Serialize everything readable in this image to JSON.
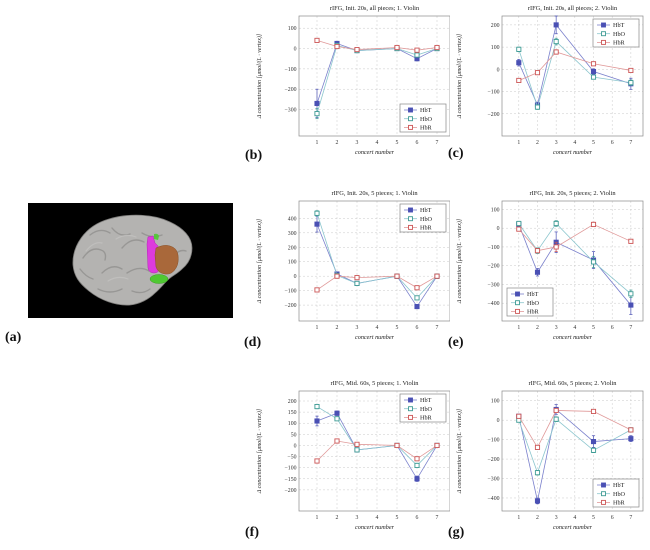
{
  "figure": {
    "panel_labels": {
      "a": "(a)",
      "b": "(b)",
      "c": "(c)",
      "d": "(d)",
      "e": "(e)",
      "f": "(f)",
      "g": "(g)"
    },
    "brain": {
      "background_color": "#000000",
      "brain_color": "#b4b3b1",
      "sulci_color": "#8f8e8c",
      "regions": [
        {
          "name": "magenta-region",
          "color": "#dd3bdd"
        },
        {
          "name": "orange-region",
          "color": "#a9683a"
        },
        {
          "name": "green-region",
          "color": "#4fc832"
        }
      ]
    }
  },
  "chart_data": [
    {
      "id": "b",
      "type": "line",
      "title": "rIFG, Init. 20s, all pieces; 1. Violin",
      "xlabel": "concert number",
      "ylabel": "Δ concentration [μmol/(L · vertex)]",
      "xticks": [
        1,
        2,
        3,
        4,
        5,
        6,
        7
      ],
      "yticks": [
        100,
        0,
        -100,
        -200,
        -300
      ],
      "ylim": [
        -430,
        160
      ],
      "grid": true,
      "legend_pos": "bottom-right",
      "series": [
        {
          "name": "HbT",
          "color": "#4a50b4",
          "line_color": "#7a80cc",
          "marker": "filled-square",
          "x": [
            1,
            2,
            3,
            5,
            6,
            7
          ],
          "y": [
            -270,
            25,
            -10,
            0,
            -50,
            0
          ],
          "err": [
            70,
            8,
            6,
            4,
            10,
            4
          ]
        },
        {
          "name": "HbO",
          "color": "#3d9b94",
          "line_color": "#8cc6ce",
          "marker": "open-square",
          "x": [
            1,
            2,
            3,
            5,
            6,
            7
          ],
          "y": [
            -320,
            15,
            -10,
            0,
            -32,
            0
          ],
          "err": [
            25,
            6,
            5,
            4,
            8,
            4
          ]
        },
        {
          "name": "HbR",
          "color": "#cc5555",
          "line_color": "#e09999",
          "marker": "open-square",
          "x": [
            1,
            2,
            3,
            5,
            6,
            7
          ],
          "y": [
            40,
            10,
            -5,
            5,
            -8,
            5
          ],
          "err": [
            6,
            4,
            4,
            3,
            5,
            3
          ]
        }
      ]
    },
    {
      "id": "c",
      "type": "line",
      "title": "rIFG, Init. 20s, all pieces; 2. Violin",
      "xlabel": "concert number",
      "ylabel": "Δ concentration [μmol/(L · vertex)]",
      "xticks": [
        1,
        2,
        3,
        4,
        5,
        6,
        7
      ],
      "yticks": [
        200,
        100,
        0,
        -100,
        -200
      ],
      "ylim": [
        -300,
        240
      ],
      "grid": true,
      "legend_pos": "top-right",
      "series": [
        {
          "name": "HbT",
          "color": "#4a50b4",
          "line_color": "#7a80cc",
          "marker": "filled-square",
          "x": [
            1,
            2,
            3,
            5,
            7
          ],
          "y": [
            30,
            -160,
            200,
            -10,
            -65
          ],
          "err": [
            15,
            12,
            40,
            12,
            25
          ]
        },
        {
          "name": "HbO",
          "color": "#3d9b94",
          "line_color": "#8cc6ce",
          "marker": "open-square",
          "x": [
            1,
            2,
            3,
            5,
            7
          ],
          "y": [
            90,
            -170,
            125,
            -35,
            -60
          ],
          "err": [
            10,
            10,
            15,
            8,
            12
          ]
        },
        {
          "name": "HbR",
          "color": "#cc5555",
          "line_color": "#e09999",
          "marker": "open-square",
          "x": [
            1,
            2,
            3,
            5,
            7
          ],
          "y": [
            -50,
            -15,
            78,
            25,
            -5
          ],
          "err": [
            8,
            6,
            10,
            8,
            6
          ]
        }
      ]
    },
    {
      "id": "d",
      "type": "line",
      "title": "rIFG, Init. 20s, 5 pieces; 1. Violin",
      "xlabel": "concert number",
      "ylabel": "Δ concentration [μmol/(L · vertex)]",
      "xticks": [
        1,
        2,
        3,
        4,
        5,
        6,
        7
      ],
      "yticks": [
        400,
        300,
        200,
        100,
        0,
        -100,
        -200
      ],
      "ylim": [
        -310,
        520
      ],
      "grid": true,
      "legend_pos": "top-right",
      "series": [
        {
          "name": "HbT",
          "color": "#4a50b4",
          "line_color": "#7a80cc",
          "marker": "filled-square",
          "x": [
            1,
            2,
            3,
            5,
            6,
            7
          ],
          "y": [
            360,
            15,
            -50,
            0,
            -210,
            0
          ],
          "err": [
            55,
            12,
            10,
            5,
            15,
            5
          ]
        },
        {
          "name": "HbO",
          "color": "#3d9b94",
          "line_color": "#8cc6ce",
          "marker": "open-square",
          "x": [
            1,
            2,
            3,
            5,
            6,
            7
          ],
          "y": [
            435,
            5,
            -50,
            0,
            -150,
            0
          ],
          "err": [
            18,
            8,
            8,
            5,
            12,
            5
          ]
        },
        {
          "name": "HbR",
          "color": "#cc5555",
          "line_color": "#e09999",
          "marker": "open-square",
          "x": [
            1,
            2,
            3,
            5,
            6,
            7
          ],
          "y": [
            -95,
            0,
            -10,
            0,
            -80,
            0
          ],
          "err": [
            10,
            5,
            5,
            4,
            8,
            4
          ]
        }
      ]
    },
    {
      "id": "e",
      "type": "line",
      "title": "rIFG, Init. 20s, 5 pieces; 2. Violin",
      "xlabel": "concert number",
      "ylabel": "Δ concentration [μmol/(L · vertex)]",
      "xticks": [
        1,
        2,
        3,
        4,
        5,
        6,
        7
      ],
      "yticks": [
        100,
        0,
        -100,
        -200,
        -300,
        -400
      ],
      "ylim": [
        -495,
        145
      ],
      "grid": true,
      "legend_pos": "bottom-left",
      "series": [
        {
          "name": "HbT",
          "color": "#4a50b4",
          "line_color": "#7a80cc",
          "marker": "filled-square",
          "x": [
            1,
            2,
            3,
            5,
            7
          ],
          "y": [
            20,
            -235,
            -75,
            -170,
            -410
          ],
          "err": [
            15,
            20,
            55,
            45,
            50
          ]
        },
        {
          "name": "HbO",
          "color": "#3d9b94",
          "line_color": "#8cc6ce",
          "marker": "open-square",
          "x": [
            1,
            2,
            3,
            5,
            7
          ],
          "y": [
            25,
            -120,
            25,
            -180,
            -350
          ],
          "err": [
            12,
            15,
            15,
            30,
            20
          ]
        },
        {
          "name": "HbR",
          "color": "#cc5555",
          "line_color": "#e09999",
          "marker": "open-square",
          "x": [
            1,
            2,
            3,
            5,
            7
          ],
          "y": [
            -5,
            -120,
            -100,
            20,
            -70
          ],
          "err": [
            8,
            10,
            25,
            12,
            10
          ]
        }
      ]
    },
    {
      "id": "f",
      "type": "line",
      "title": "rIFG, Mid. 60s, 5 pieces; 1. Violin",
      "xlabel": "concert number",
      "ylabel": "Δ concentration [μmol/(L · vertex)]",
      "xticks": [
        1,
        2,
        3,
        4,
        5,
        6,
        7
      ],
      "yticks": [
        200,
        150,
        100,
        50,
        0,
        -50,
        -100,
        -150,
        -200
      ],
      "ylim": [
        -295,
        245
      ],
      "grid": true,
      "legend_pos": "top-right",
      "series": [
        {
          "name": "HbT",
          "color": "#4a50b4",
          "line_color": "#7a80cc",
          "marker": "filled-square",
          "x": [
            1,
            2,
            3,
            5,
            6,
            7
          ],
          "y": [
            110,
            145,
            -20,
            0,
            -150,
            0
          ],
          "err": [
            22,
            10,
            8,
            5,
            12,
            5
          ]
        },
        {
          "name": "HbO",
          "color": "#3d9b94",
          "line_color": "#8cc6ce",
          "marker": "open-square",
          "x": [
            1,
            2,
            3,
            5,
            6,
            7
          ],
          "y": [
            175,
            120,
            -20,
            0,
            -90,
            0
          ],
          "err": [
            10,
            8,
            8,
            5,
            10,
            5
          ]
        },
        {
          "name": "HbR",
          "color": "#cc5555",
          "line_color": "#e09999",
          "marker": "open-square",
          "x": [
            1,
            2,
            3,
            5,
            6,
            7
          ],
          "y": [
            -70,
            20,
            5,
            0,
            -60,
            0
          ],
          "err": [
            8,
            6,
            5,
            4,
            8,
            4
          ]
        }
      ]
    },
    {
      "id": "g",
      "type": "line",
      "title": "rIFG, Mid. 60s, 5 pieces; 2. Violin",
      "xlabel": "concert number",
      "ylabel": "Δ concentration [μmol/(L · vertex)]",
      "xticks": [
        1,
        2,
        3,
        4,
        5,
        6,
        7
      ],
      "yticks": [
        100,
        0,
        -100,
        -200,
        -300,
        -400
      ],
      "ylim": [
        -467,
        150
      ],
      "grid": true,
      "legend_pos": "bottom-right",
      "series": [
        {
          "name": "HbT",
          "color": "#4a50b4",
          "line_color": "#7a80cc",
          "marker": "filled-square",
          "x": [
            1,
            2,
            3,
            5,
            7
          ],
          "y": [
            20,
            -415,
            55,
            -110,
            -95
          ],
          "err": [
            10,
            15,
            25,
            30,
            15
          ]
        },
        {
          "name": "HbO",
          "color": "#3d9b94",
          "line_color": "#8cc6ce",
          "marker": "open-square",
          "x": [
            1,
            2,
            3,
            5,
            7
          ],
          "y": [
            0,
            -270,
            5,
            -155,
            -50
          ],
          "err": [
            8,
            12,
            12,
            12,
            10
          ]
        },
        {
          "name": "HbR",
          "color": "#cc5555",
          "line_color": "#e09999",
          "marker": "open-square",
          "x": [
            1,
            2,
            3,
            5,
            7
          ],
          "y": [
            20,
            -140,
            50,
            45,
            -50
          ],
          "err": [
            8,
            10,
            10,
            8,
            8
          ]
        }
      ]
    }
  ]
}
